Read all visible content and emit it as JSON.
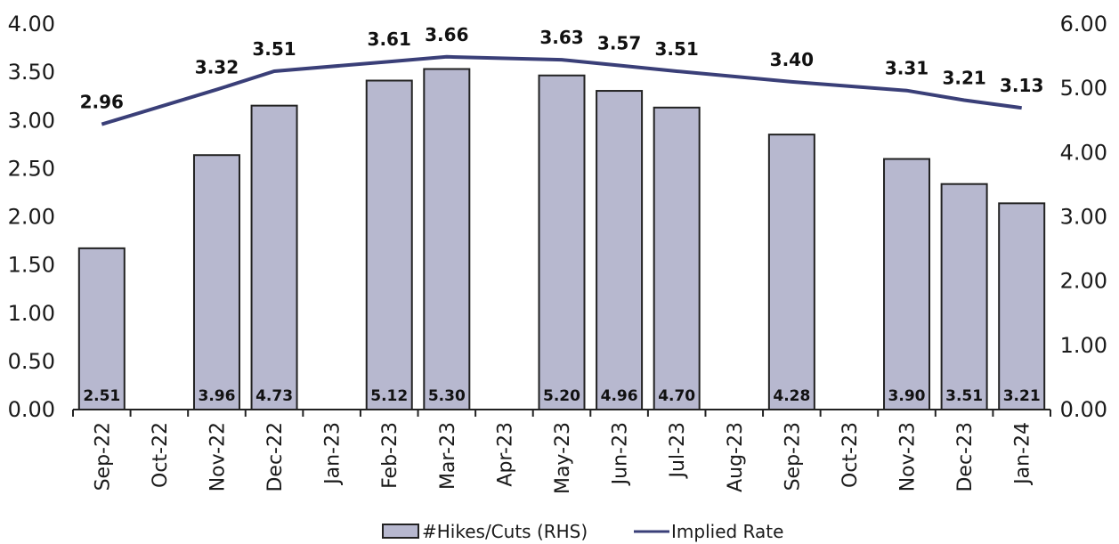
{
  "chart_data": {
    "type": "bar",
    "categories": [
      "Sep-22",
      "Oct-22",
      "Nov-22",
      "Dec-22",
      "Jan-23",
      "Feb-23",
      "Mar-23",
      "Apr-23",
      "May-23",
      "Jun-23",
      "Jul-23",
      "Aug-23",
      "Sep-23",
      "Oct-23",
      "Nov-23",
      "Dec-23",
      "Jan-24"
    ],
    "series": [
      {
        "name": "#Hikes/Cuts (RHS)",
        "type": "bar",
        "axis": "right",
        "values": [
          2.51,
          null,
          3.96,
          4.73,
          null,
          5.12,
          5.3,
          null,
          5.2,
          4.96,
          4.7,
          null,
          4.28,
          null,
          3.9,
          3.51,
          3.21
        ],
        "labels": [
          "2.51",
          "",
          "3.96",
          "4.73",
          "",
          "5.12",
          "5.30",
          "",
          "5.20",
          "4.96",
          "4.70",
          "",
          "4.28",
          "",
          "3.90",
          "3.51",
          "3.21"
        ]
      },
      {
        "name": "Implied Rate",
        "type": "line",
        "axis": "left",
        "values": [
          2.96,
          null,
          3.32,
          3.51,
          null,
          3.61,
          3.66,
          null,
          3.63,
          3.57,
          3.51,
          null,
          3.4,
          null,
          3.31,
          3.21,
          3.13
        ],
        "labels": [
          "2.96",
          "",
          "3.32",
          "3.51",
          "",
          "3.61",
          "3.66",
          "",
          "3.63",
          "3.57",
          "3.51",
          "",
          "3.40",
          "",
          "3.31",
          "3.21",
          "3.13"
        ]
      }
    ],
    "y_left": {
      "ylim": [
        0,
        4
      ],
      "ticks": [
        "0.00",
        "0.50",
        "1.00",
        "1.50",
        "2.00",
        "2.50",
        "3.00",
        "3.50",
        "4.00"
      ]
    },
    "y_right": {
      "ylim": [
        0,
        6
      ],
      "ticks": [
        "0.00",
        "1.00",
        "2.00",
        "3.00",
        "4.00",
        "5.00",
        "6.00"
      ]
    },
    "grid": false,
    "legend_position": "bottom"
  },
  "colors": {
    "bar_fill": "#b7b8cf",
    "bar_stroke": "#222222",
    "line": "#3a3f78",
    "axis": "#222222"
  }
}
